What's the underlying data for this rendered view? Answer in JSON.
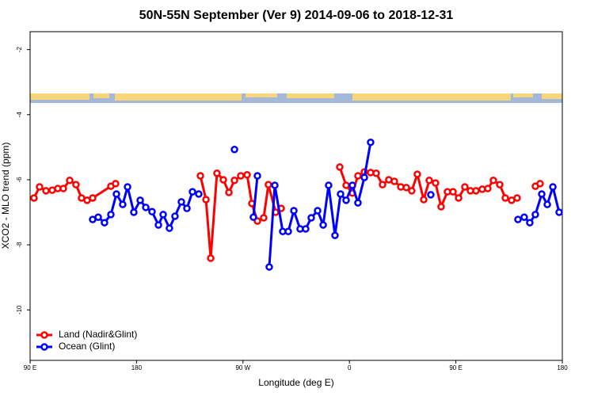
{
  "chart_data": {
    "type": "line",
    "title": "50N-55N September (Ver 9)   2014-09-06 to 2018-12-31",
    "x_label": "Longitude (deg E)",
    "y_label": "XCO2 - MLO trend (ppm)",
    "xlim": [
      90,
      540
    ],
    "ylim": [
      -11.55,
      -1.45
    ],
    "xticks": [
      {
        "value": 90,
        "label": "90 E"
      },
      180,
      {
        "value": 270,
        "label": "90 W"
      },
      {
        "value": 360,
        "label": "0"
      },
      {
        "value": 450,
        "label": "90 E"
      },
      {
        "value": 540,
        "label": "180"
      }
    ],
    "yticks": [
      -2,
      -4,
      -6,
      -8,
      -10
    ],
    "legend": "bottom-left",
    "series": [
      {
        "name": "Land (Nadir&Glint)",
        "color": "#ff0000",
        "x": [
          93.3,
          98.0,
          103.4,
          108.7,
          113.4,
          118.1,
          123.5,
          128.8,
          133.5,
          138.2,
          142.9,
          158.3,
          162.3,
          null,
          234.0,
          238.7,
          242.7,
          248.0,
          253.4,
          258.1,
          262.8,
          268.1,
          273.5,
          277.5,
          282.2,
          287.5,
          291.5,
          297.6,
          302.3,
          null,
          351.8,
          357.2,
          362.5,
          367.2,
          372.6,
          377.9,
          382.6,
          388.0,
          393.3,
          398.0,
          403.4,
          408.1,
          412.7,
          417.4,
          422.8,
          427.5,
          432.8,
          437.5,
          442.9,
          447.6,
          452.3,
          457.6,
          462.3,
          467.0,
          472.3,
          477.0,
          481.7,
          487.1,
          491.8,
          497.1,
          501.8,
          null,
          517.2,
          521.2
        ],
        "values": [
          -6.56,
          -6.22,
          -6.34,
          -6.32,
          -6.27,
          -6.27,
          -6.02,
          -6.15,
          -6.56,
          -6.63,
          -6.56,
          -6.2,
          -6.12,
          null,
          -5.88,
          -6.61,
          -8.41,
          -5.8,
          -6.0,
          -6.39,
          -6.02,
          -5.88,
          -5.85,
          -6.73,
          -7.27,
          -7.17,
          -6.15,
          -7.0,
          -6.88,
          null,
          -5.61,
          -6.17,
          -6.41,
          -5.88,
          -5.76,
          -5.78,
          -5.8,
          -6.15,
          -6.0,
          -6.05,
          -6.22,
          -6.24,
          -6.34,
          -5.83,
          -6.61,
          -6.02,
          -6.1,
          -6.83,
          -6.37,
          -6.37,
          -6.56,
          -6.22,
          -6.34,
          -6.34,
          -6.29,
          -6.27,
          -6.02,
          -6.15,
          -6.56,
          -6.63,
          -6.56,
          null,
          -6.2,
          -6.12
        ]
      },
      {
        "name": "Ocean (Glint)",
        "color": "#0000ff",
        "x": [
          142.9,
          147.6,
          152.9,
          158.3,
          163.0,
          168.3,
          172.4,
          177.7,
          183.1,
          187.8,
          193.1,
          198.5,
          202.5,
          207.8,
          212.5,
          217.9,
          222.6,
          227.3,
          232.6,
          null,
          262.8,
          null,
          278.8,
          282.2,
          null,
          292.2,
          296.9,
          303.6,
          308.3,
          313.0,
          318.3,
          323.0,
          327.7,
          333.1,
          337.8,
          342.4,
          347.8,
          352.5,
          357.2,
          362.5,
          367.2,
          372.6,
          377.9,
          null,
          428.8,
          null,
          502.5,
          507.8,
          512.5,
          517.2,
          522.6,
          527.3,
          532.0,
          537.3
        ],
        "values": [
          -7.22,
          -7.15,
          -7.32,
          -7.07,
          -6.44,
          -6.76,
          -6.22,
          -7.0,
          -6.63,
          -6.85,
          -6.98,
          -7.39,
          -7.07,
          -7.49,
          -7.12,
          -6.68,
          -6.88,
          -6.37,
          -6.44,
          null,
          -5.07,
          null,
          -7.15,
          -5.88,
          null,
          -8.68,
          -6.17,
          -7.59,
          -7.59,
          -6.95,
          -7.51,
          -7.51,
          -7.17,
          -6.95,
          -7.39,
          -6.17,
          -7.71,
          -6.44,
          -6.63,
          -6.17,
          -6.71,
          -5.93,
          -4.85,
          null,
          -6.46,
          null,
          -7.22,
          -7.15,
          -7.32,
          -7.07,
          -6.44,
          -6.76,
          -6.22,
          -7.0
        ]
      }
    ]
  }
}
